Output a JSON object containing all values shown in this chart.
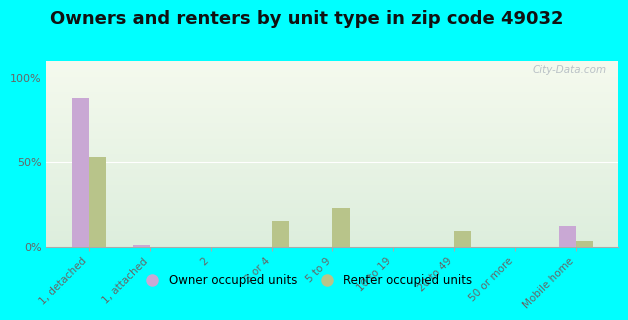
{
  "title": "Owners and renters by unit type in zip code 49032",
  "categories": [
    "1, detached",
    "1, attached",
    "2",
    "3 or 4",
    "5 to 9",
    "10 to 19",
    "20 to 49",
    "50 or more",
    "Mobile home"
  ],
  "owner_values": [
    88,
    1,
    0,
    0,
    0,
    0,
    0,
    0,
    12
  ],
  "renter_values": [
    53,
    0,
    0,
    15,
    23,
    0,
    9,
    0,
    3
  ],
  "owner_color": "#c9a8d4",
  "renter_color": "#b8c48a",
  "background_color": "#00ffff",
  "plot_bg_top": "#f5faee",
  "plot_bg_bottom": "#ddeedd",
  "yticks": [
    0,
    50,
    100
  ],
  "ylim": [
    0,
    110
  ],
  "ylabel_labels": [
    "0%",
    "50%",
    "100%"
  ],
  "watermark": "City-Data.com",
  "legend_owner": "Owner occupied units",
  "legend_renter": "Renter occupied units",
  "bar_width": 0.28,
  "title_fontsize": 13
}
